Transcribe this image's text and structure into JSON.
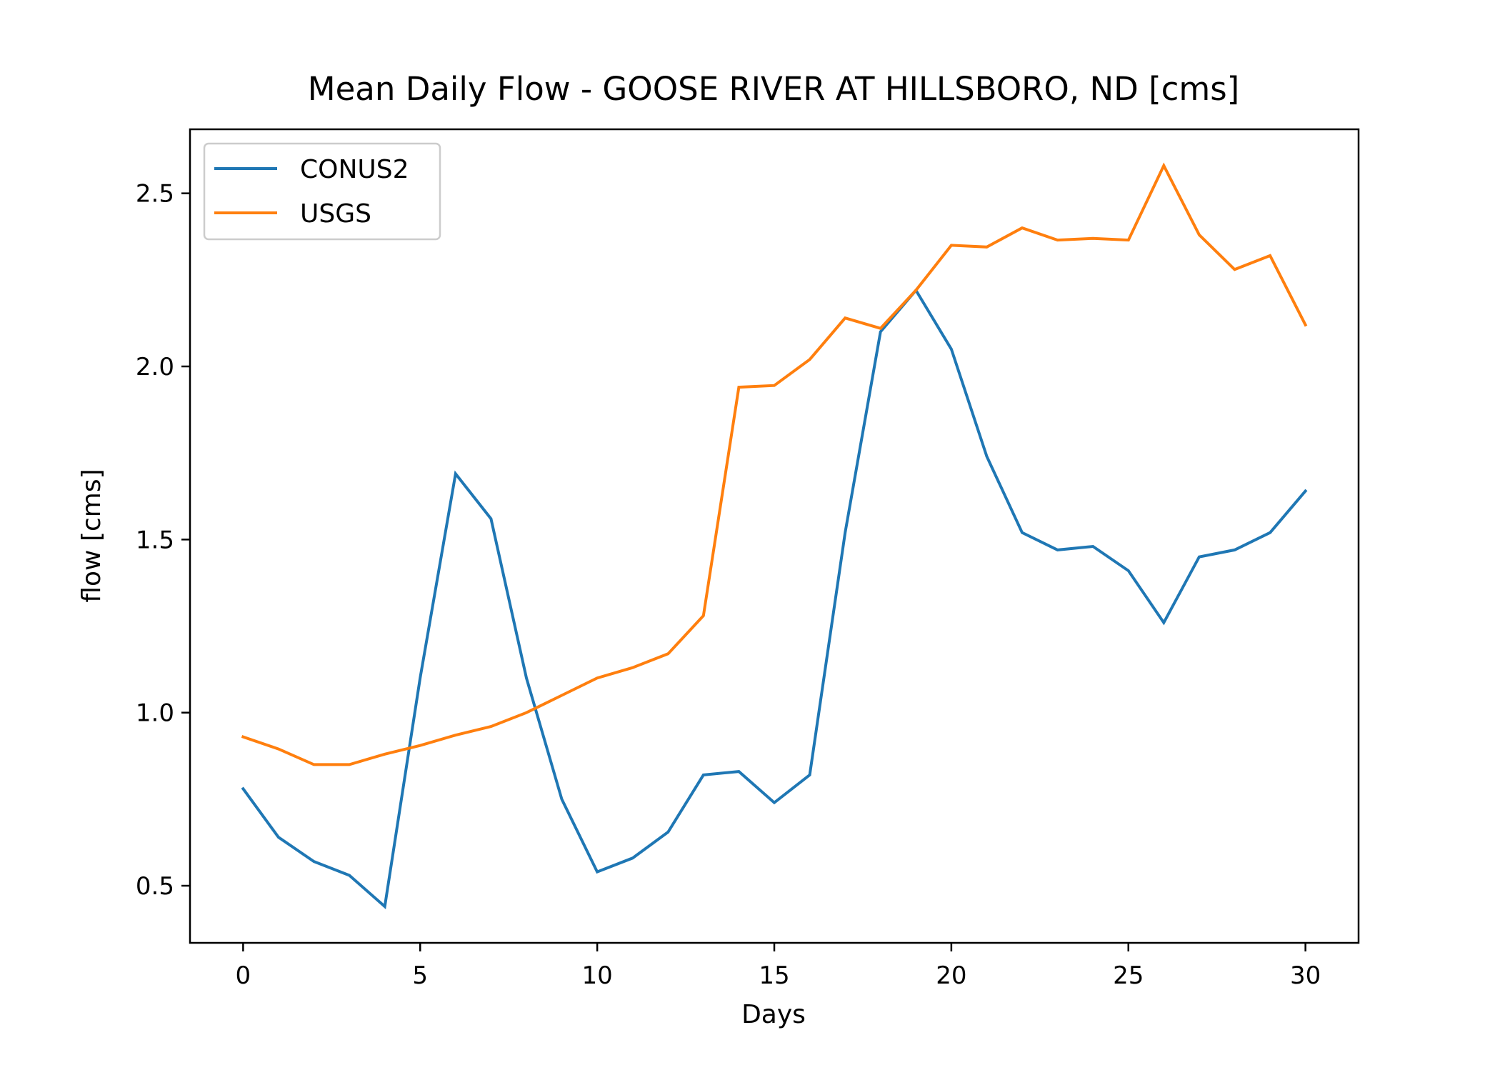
{
  "chart_data": {
    "type": "line",
    "title": "Mean Daily Flow - GOOSE RIVER AT HILLSBORO, ND [cms]",
    "xlabel": "Days",
    "ylabel": "flow [cms]",
    "xlim": [
      -1.5,
      31.5
    ],
    "ylim": [
      0.335,
      2.685
    ],
    "xticks": [
      0,
      5,
      10,
      15,
      20,
      25,
      30
    ],
    "xtick_labels": [
      "0",
      "5",
      "10",
      "15",
      "20",
      "25",
      "30"
    ],
    "yticks": [
      0.5,
      1.0,
      1.5,
      2.0,
      2.5
    ],
    "ytick_labels": [
      "0.5",
      "1.0",
      "1.5",
      "2.0",
      "2.5"
    ],
    "grid": false,
    "legend_position": "upper-left",
    "x": [
      0,
      1,
      2,
      3,
      4,
      5,
      6,
      7,
      8,
      9,
      10,
      11,
      12,
      13,
      14,
      15,
      16,
      17,
      18,
      19,
      20,
      21,
      22,
      23,
      24,
      25,
      26,
      27,
      28,
      29,
      30
    ],
    "series": [
      {
        "name": "CONUS2",
        "color": "#1f77b4",
        "values": [
          0.78,
          0.64,
          0.57,
          0.53,
          0.44,
          1.1,
          1.69,
          1.56,
          1.1,
          0.75,
          0.54,
          0.58,
          0.655,
          0.82,
          0.83,
          0.74,
          0.82,
          1.52,
          2.1,
          2.22,
          2.05,
          1.74,
          1.52,
          1.47,
          1.48,
          1.41,
          1.26,
          1.45,
          1.47,
          1.52,
          1.64
        ]
      },
      {
        "name": "USGS",
        "color": "#ff7f0e",
        "values": [
          0.93,
          0.895,
          0.85,
          0.85,
          0.88,
          0.905,
          0.935,
          0.96,
          1.0,
          1.05,
          1.1,
          1.13,
          1.17,
          1.28,
          1.94,
          1.945,
          2.02,
          2.14,
          2.11,
          2.22,
          2.35,
          2.345,
          2.4,
          2.365,
          2.37,
          2.365,
          2.58,
          2.38,
          2.28,
          2.32,
          2.12
        ]
      }
    ]
  }
}
